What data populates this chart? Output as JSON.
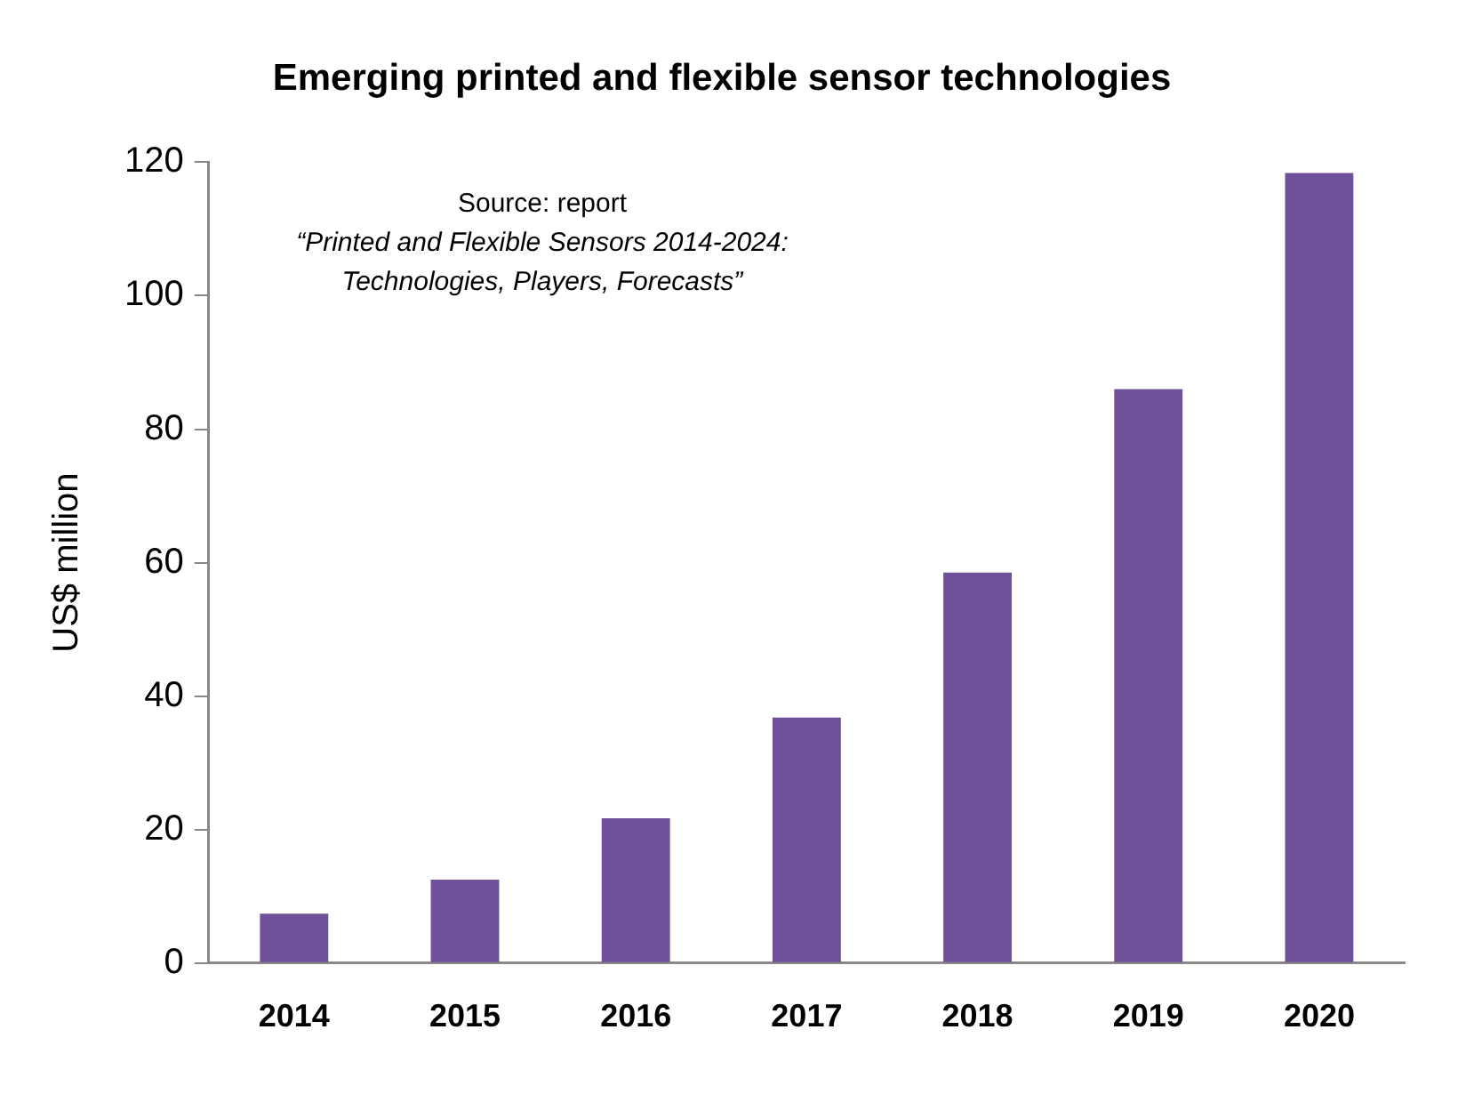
{
  "chart_data": {
    "type": "bar",
    "title": "Emerging printed and flexible sensor technologies",
    "ylabel": "US$ million",
    "categories": [
      "2014",
      "2015",
      "2016",
      "2017",
      "2018",
      "2019",
      "2020"
    ],
    "values": [
      7.4,
      12.5,
      21.7,
      36.8,
      58.5,
      86,
      118.4
    ],
    "color": "#6e5199",
    "ylim": [
      0,
      120
    ],
    "yticks": [
      0,
      20,
      40,
      60,
      80,
      100,
      120
    ],
    "annotations": [
      "Source: report",
      "“Printed and Flexible Sensors 2014-2024: Technologies, Players, Forecasts”"
    ]
  }
}
